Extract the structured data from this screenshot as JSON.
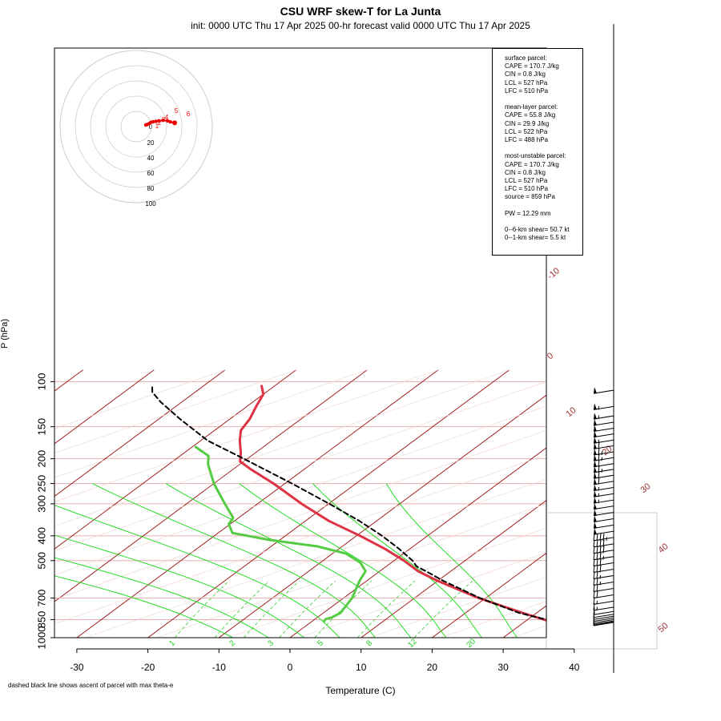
{
  "title": "CSU WRF skew-T for La Junta",
  "subtitle": "init: 0000 UTC Thu 17 Apr 2025     00-hr forecast valid 0000 UTC Thu 17 Apr 2025",
  "footnote": "dashed black line shows ascent of parcel with max theta-e",
  "stats": {
    "surface": [
      "surface parcel:",
      "CAPE = 170.7 J/kg",
      "CIN = 0.8 J/kg",
      "LCL = 527 hPa",
      "LFC = 510 hPa"
    ],
    "mean_layer": [
      "mean-layer parcel:",
      "CAPE = 55.8 J/kg",
      "CIN = 29.9 J/kg",
      "LCL = 522 hPa",
      "LFC = 488 hPa"
    ],
    "most_unstable": [
      "most-unstable parcel:",
      "CAPE = 170.7 J/kg",
      "CIN = 0.8 J/kg",
      "LCL = 527 hPa",
      "LFC = 510 hPa",
      "source = 859 hPa"
    ],
    "pw": "PW =  12.29 mm",
    "shear": [
      "0--6-km shear= 50.7 kt",
      "0--1-km shear= 5.5 kt"
    ]
  },
  "colors": {
    "temperature": "#dd3344",
    "dewpoint": "#55cc44",
    "parcel": "#000000",
    "isotherm": "#a02020",
    "mixing_ratio": "#33cc33",
    "moist_adiabat": "#22dd22",
    "isobar": "#e8b0b0"
  },
  "chart_data": {
    "type": "line",
    "xlabel": "Temperature (C)",
    "ylabel": "P (hPa)",
    "x_ticks": [
      -30,
      -20,
      -10,
      0,
      10,
      20,
      30,
      40
    ],
    "y_ticks": [
      100,
      150,
      200,
      250,
      300,
      400,
      500,
      700,
      850,
      1000
    ],
    "xlim": [
      -33,
      46
    ],
    "ylim": [
      1050,
      100
    ],
    "isotherm_labels": [
      -10,
      0,
      10,
      20,
      30,
      40,
      50
    ],
    "mixing_ratio_labels": [
      1,
      2,
      3,
      5,
      8,
      12,
      20
    ],
    "series": [
      {
        "name": "temperature",
        "points": [
          [
            874,
            35.0
          ],
          [
            860,
            33.2
          ],
          [
            800,
            28.0
          ],
          [
            700,
            19.0
          ],
          [
            600,
            10.0
          ],
          [
            550,
            5.4
          ],
          [
            500,
            1.4
          ],
          [
            450,
            -3.5
          ],
          [
            400,
            -9.5
          ],
          [
            350,
            -16.7
          ],
          [
            300,
            -23.8
          ],
          [
            250,
            -31.6
          ],
          [
            220,
            -37.5
          ],
          [
            205,
            -40.5
          ],
          [
            190,
            -42.0
          ],
          [
            170,
            -44.5
          ],
          [
            155,
            -46.3
          ],
          [
            140,
            -47.2
          ],
          [
            125,
            -48.7
          ],
          [
            112,
            -50.0
          ],
          [
            104,
            -51.8
          ]
        ]
      },
      {
        "name": "dewpoint",
        "points": [
          [
            864,
            1.7
          ],
          [
            855,
            1.6
          ],
          [
            845,
            1.5
          ],
          [
            835,
            2.0
          ],
          [
            800,
            2.4
          ],
          [
            700,
            1.2
          ],
          [
            600,
            -1.0
          ],
          [
            550,
            -2.0
          ],
          [
            510,
            -4.3
          ],
          [
            470,
            -8.0
          ],
          [
            440,
            -13.5
          ],
          [
            415,
            -21.5
          ],
          [
            390,
            -28.0
          ],
          [
            360,
            -30.2
          ],
          [
            340,
            -30.8
          ],
          [
            300,
            -34.6
          ],
          [
            250,
            -40.0
          ],
          [
            210,
            -44.5
          ],
          [
            195,
            -46.0
          ],
          [
            180,
            -49.5
          ]
        ]
      },
      {
        "name": "parcel",
        "points": [
          [
            874,
            35.0
          ],
          [
            800,
            27.5
          ],
          [
            700,
            19.2
          ],
          [
            600,
            10.8
          ],
          [
            550,
            6.5
          ],
          [
            527,
            4.3
          ],
          [
            500,
            2.6
          ],
          [
            450,
            -1.5
          ],
          [
            400,
            -6.4
          ],
          [
            350,
            -12.4
          ],
          [
            300,
            -19.9
          ],
          [
            250,
            -29.0
          ],
          [
            200,
            -40.5
          ],
          [
            170,
            -49.0
          ],
          [
            140,
            -57.0
          ],
          [
            120,
            -63.0
          ],
          [
            110,
            -66.0
          ],
          [
            105,
            -67.0
          ]
        ]
      }
    ],
    "winds_pressure": [
      108,
      125,
      136,
      144,
      152,
      160,
      169,
      178,
      188,
      198,
      209,
      220,
      232,
      245,
      259,
      274,
      290,
      306,
      324,
      343,
      363,
      384,
      406,
      430,
      455,
      482,
      510,
      540,
      572,
      606,
      642,
      680,
      720,
      760,
      790,
      810,
      825,
      838,
      850,
      860,
      867,
      872
    ],
    "winds_speed_kt": [
      50,
      55,
      55,
      50,
      50,
      50,
      55,
      60,
      65,
      65,
      60,
      65,
      60,
      60,
      55,
      55,
      55,
      50,
      50,
      50,
      50,
      50,
      45,
      40,
      40,
      35,
      30,
      30,
      25,
      25,
      20,
      20,
      15,
      15,
      10,
      10,
      10,
      5,
      5,
      5,
      5,
      5
    ],
    "hodograph": {
      "ring_labels": [
        0,
        20,
        40,
        60,
        80,
        100
      ],
      "height_labels": [
        1,
        2,
        3,
        4,
        5,
        6
      ],
      "points": [
        [
          0,
          0
        ],
        [
          2,
          1
        ],
        [
          5,
          3
        ],
        [
          7,
          5
        ],
        [
          10,
          6
        ],
        [
          14,
          7
        ],
        [
          18,
          8
        ],
        [
          24,
          9
        ],
        [
          30,
          8
        ],
        [
          34,
          6
        ],
        [
          40,
          4
        ]
      ]
    }
  }
}
